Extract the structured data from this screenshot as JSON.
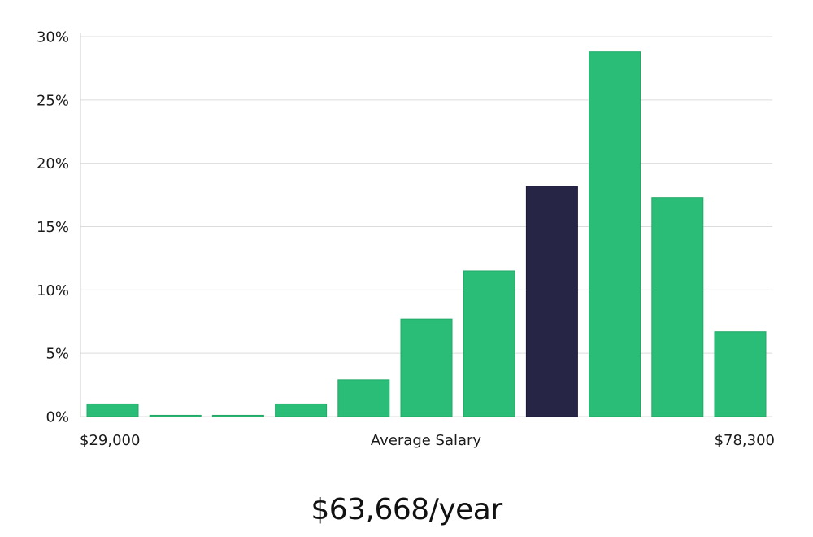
{
  "chart_data": {
    "type": "bar",
    "x_left_label": "$29,000",
    "x_center_label": "Average Salary",
    "x_right_label": "$78,300",
    "y_tick_labels": [
      "0%",
      "5%",
      "10%",
      "15%",
      "20%",
      "25%",
      "30%"
    ],
    "ylim": [
      0,
      30
    ],
    "grid": true,
    "values": [
      1.0,
      0.1,
      0.1,
      1.0,
      2.9,
      7.7,
      11.5,
      18.2,
      28.8,
      17.3,
      6.7
    ],
    "highlight_index": 7,
    "colors": {
      "bar": "#2abd77",
      "highlight": "#272546"
    }
  },
  "salary_text": "$63,668/year"
}
